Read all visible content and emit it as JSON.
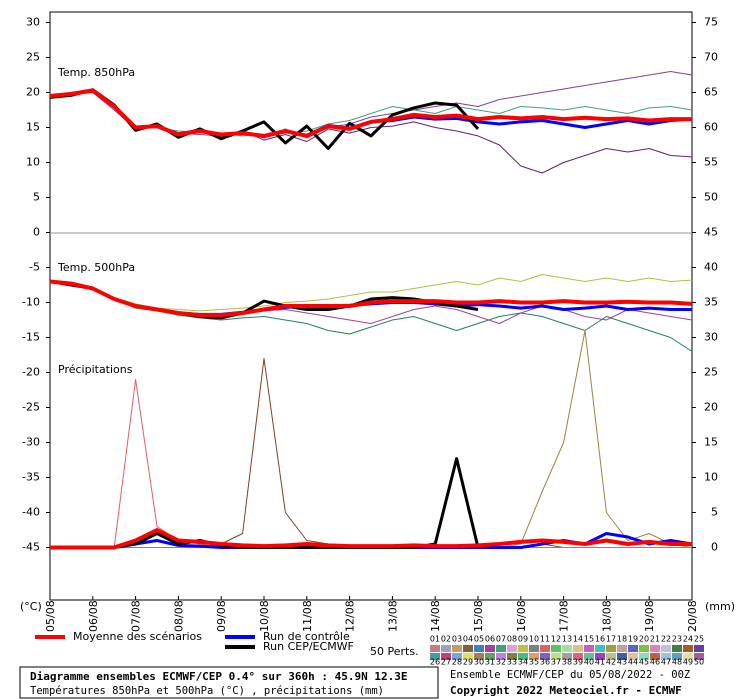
{
  "chart_data": {
    "type": "line",
    "title": "Diagramme ensembles ECMWF/CEP 0.4° sur 360h : 45.9N 12.3E",
    "subtitle": "Températures 850hPa et 500hPa (°C) , précipitations (mm)",
    "run_info": "Ensemble ECMWF/CEP du 05/08/2022 - 00Z",
    "copyright": "Copyright 2022 Meteociel.fr - ECMWF",
    "ylabel": "(°C)",
    "y2label": "(mm)",
    "annotations": [
      "Temp. 850hPa",
      "Temp. 500hPa",
      "Précipitations"
    ],
    "ylim": [
      -52.5,
      31.5
    ],
    "yticks": [
      30,
      25,
      20,
      15,
      10,
      5,
      0,
      -5,
      -10,
      -15,
      -20,
      -25,
      -30,
      -35,
      -40,
      -45
    ],
    "y2lim": [
      -7.5,
      76.5
    ],
    "y2ticks": [
      75,
      70,
      65,
      60,
      55,
      50,
      45,
      40,
      35,
      30,
      25,
      20,
      15,
      10,
      5,
      0
    ],
    "xlim": [
      0,
      15
    ],
    "xticks": [
      {
        "value": 0,
        "label": "05/08"
      },
      {
        "value": 1,
        "label": "06/08"
      },
      {
        "value": 2,
        "label": "07/08"
      },
      {
        "value": 3,
        "label": "08/08"
      },
      {
        "value": 4,
        "label": "09/08"
      },
      {
        "value": 5,
        "label": "10/08"
      },
      {
        "value": 6,
        "label": "11/08"
      },
      {
        "value": 7,
        "label": "12/08"
      },
      {
        "value": 8,
        "label": "13/08"
      },
      {
        "value": 9,
        "label": "14/08"
      },
      {
        "value": 10,
        "label": "15/08"
      },
      {
        "value": 11,
        "label": "16/08"
      },
      {
        "value": 12,
        "label": "17/08"
      },
      {
        "value": 13,
        "label": "18/08"
      },
      {
        "value": 14,
        "label": "19/08"
      },
      {
        "value": 15,
        "label": "20/08"
      }
    ],
    "x": [
      0,
      0.5,
      1,
      1.5,
      2,
      2.5,
      3,
      3.5,
      4,
      4.5,
      5,
      5.5,
      6,
      6.5,
      7,
      7.5,
      8,
      8.5,
      9,
      9.5,
      10,
      10.5,
      11,
      11.5,
      12,
      12.5,
      13,
      13.5,
      14,
      14.5,
      15
    ],
    "series": [
      {
        "color": "#8040a0",
        "width": 1,
        "values": [
          19.5,
          19.8,
          20,
          17.5,
          14.8,
          15,
          14.2,
          14,
          13.8,
          14.5,
          13.5,
          14.8,
          13.5,
          15,
          15.5,
          16.5,
          17,
          17.5,
          18,
          18.5,
          18,
          19,
          19.5,
          20,
          20.5,
          21,
          21.5,
          22,
          22.5,
          23,
          22.5
        ]
      },
      {
        "color": "#602080",
        "width": 1,
        "values": [
          19.5,
          19.6,
          20.2,
          18.3,
          15.2,
          15.3,
          14.2,
          14.8,
          13.6,
          14.6,
          13.2,
          14,
          13,
          14.8,
          14.2,
          15,
          15.2,
          15.8,
          15,
          14.5,
          13.8,
          12.5,
          9.5,
          8.5,
          10,
          11,
          12,
          11.5,
          12,
          11,
          10.8
        ]
      },
      {
        "color": "#40a080",
        "width": 1,
        "values": [
          19.4,
          19.7,
          20.1,
          17.8,
          15.1,
          15,
          14.5,
          14.3,
          14.2,
          13.8,
          14,
          14.2,
          14.5,
          15.5,
          16,
          17,
          18,
          17.5,
          17,
          18,
          17.5,
          17,
          18,
          17.8,
          17.5,
          18,
          17.5,
          17,
          17.8,
          18,
          17.5
        ]
      },
      {
        "color": "#0000ff",
        "width": 3,
        "values": [
          19.5,
          19.8,
          20.2,
          18,
          15,
          15.2,
          14.1,
          14.6,
          13.9,
          14.3,
          13.7,
          14.4,
          13.9,
          15.3,
          14.9,
          15.8,
          16,
          16.5,
          16.2,
          16.3,
          15.8,
          15.5,
          15.8,
          16,
          15.5,
          15,
          15.5,
          16,
          15.5,
          16,
          16.2
        ]
      },
      {
        "color": "#000000",
        "width": 3,
        "values": [
          19.3,
          19.6,
          20.4,
          18.2,
          14.6,
          15.5,
          13.6,
          14.8,
          13.4,
          14.5,
          15.8,
          12.8,
          15.2,
          12,
          15.6,
          13.8,
          16.8,
          17.8,
          18.5,
          18.2,
          14.8,
          null,
          null,
          null,
          null,
          null,
          null,
          null,
          null,
          null,
          null
        ]
      },
      {
        "color": "#ff0000",
        "width": 4,
        "values": [
          19.5,
          19.8,
          20.3,
          18,
          15,
          15.2,
          14,
          14.5,
          14,
          14.2,
          13.8,
          14.5,
          13.8,
          15.2,
          14.8,
          15.8,
          16.2,
          16.8,
          16.5,
          16.7,
          16.2,
          16.5,
          16.3,
          16.5,
          16.2,
          16.4,
          16.2,
          16.3,
          16,
          16.2,
          16.2
        ]
      },
      {
        "color": "#b0c040",
        "width": 1,
        "values": [
          -7,
          -7.4,
          -8.1,
          -9.3,
          -10.2,
          -10.8,
          -11,
          -11.2,
          -11,
          -10.8,
          -10.5,
          -10,
          -9.8,
          -9.5,
          -9,
          -8.5,
          -8.5,
          -8,
          -7.5,
          -7,
          -7.5,
          -6.5,
          -7,
          -6,
          -6.5,
          -7,
          -6.5,
          -7,
          -6.5,
          -7,
          -6.8
        ]
      },
      {
        "color": "#208060",
        "width": 1,
        "values": [
          -7,
          -7.2,
          -8,
          -9.6,
          -10.8,
          -11.2,
          -11.8,
          -12.2,
          -12.5,
          -12.2,
          -12,
          -12.5,
          -13,
          -14,
          -14.5,
          -13.5,
          -12.5,
          -12,
          -13,
          -14,
          -13,
          -12,
          -11.5,
          -12,
          -13,
          -14,
          -12,
          -13,
          -14,
          -15,
          -17
        ]
      },
      {
        "color": "#a040a0",
        "width": 1,
        "values": [
          -7,
          -7.3,
          -8,
          -9.4,
          -10.4,
          -11,
          -11.6,
          -11.9,
          -12,
          -11.6,
          -11.2,
          -11,
          -11.5,
          -12,
          -12.5,
          -13,
          -12,
          -11,
          -10.5,
          -11,
          -12,
          -13,
          -11.5,
          -10.5,
          -11,
          -12,
          -12.5,
          -11,
          -11.5,
          -12,
          -12.5
        ]
      },
      {
        "color": "#0000ff",
        "width": 3,
        "values": [
          -7,
          -7.3,
          -8,
          -9.5,
          -10.5,
          -11,
          -11.5,
          -11.7,
          -11.7,
          -11.4,
          -11,
          -10.7,
          -10.5,
          -10.5,
          -10.4,
          -10.2,
          -10,
          -10,
          -10.2,
          -10.5,
          -10.3,
          -10.5,
          -10.8,
          -10.5,
          -11,
          -10.8,
          -10.5,
          -11,
          -10.8,
          -11,
          -11
        ]
      },
      {
        "color": "#000000",
        "width": 3,
        "values": [
          -7,
          -7.5,
          -8,
          -9.5,
          -10.5,
          -11,
          -11.5,
          -12,
          -12.2,
          -11.5,
          -9.8,
          -10.5,
          -11,
          -11,
          -10.5,
          -9.5,
          -9.3,
          -9.5,
          -10,
          -10.5,
          -11,
          null,
          null,
          null,
          null,
          null,
          null,
          null,
          null,
          null,
          null
        ]
      },
      {
        "color": "#ff0000",
        "width": 4,
        "values": [
          -7,
          -7.3,
          -8,
          -9.5,
          -10.5,
          -11,
          -11.5,
          -11.8,
          -11.8,
          -11.5,
          -11,
          -10.5,
          -10.5,
          -10.5,
          -10.5,
          -10,
          -9.8,
          -9.8,
          -9.8,
          -10,
          -10,
          -9.8,
          -10,
          -10,
          -9.8,
          -10,
          -10,
          -9.9,
          -10,
          -10,
          -10.2
        ]
      },
      {
        "color": "#804020",
        "width": 1,
        "axis": "y2",
        "values": [
          0,
          0,
          0,
          0,
          0,
          0,
          0,
          0,
          0.5,
          2,
          27,
          5,
          1,
          0.5,
          0,
          0,
          0,
          0,
          0,
          0,
          0,
          0,
          0,
          0.5,
          0,
          0,
          0,
          0,
          0,
          0,
          0
        ]
      },
      {
        "color": "#e06060",
        "width": 1,
        "axis": "y2",
        "values": [
          0,
          0,
          0,
          0,
          24,
          3,
          1,
          0.5,
          0,
          0,
          0,
          0,
          0,
          0,
          0,
          0,
          0,
          0,
          0,
          0,
          0,
          0,
          0,
          0,
          0,
          0,
          0,
          0,
          0,
          0,
          0
        ]
      },
      {
        "color": "#a08040",
        "width": 1,
        "axis": "y2",
        "values": [
          0,
          0,
          0,
          0,
          0,
          0,
          0,
          0,
          0,
          0,
          0,
          0,
          0,
          0,
          0,
          0,
          0,
          0,
          0,
          0,
          0,
          0,
          0.5,
          8,
          15,
          31,
          5,
          1,
          2,
          0.5,
          0
        ]
      },
      {
        "color": "#0000ff",
        "width": 3,
        "axis": "y2",
        "values": [
          0,
          0,
          0,
          0,
          0.5,
          1,
          0.3,
          0.2,
          0,
          0,
          0,
          0,
          0,
          0,
          0,
          0,
          0,
          0,
          0,
          0,
          0,
          0,
          0,
          0.5,
          1,
          0.5,
          2,
          1.5,
          0.5,
          1,
          0.5
        ]
      },
      {
        "color": "#000000",
        "width": 3,
        "axis": "y2",
        "values": [
          0,
          0,
          0,
          0,
          0.5,
          2,
          0.5,
          1,
          0.3,
          0,
          0,
          0,
          0,
          0,
          0,
          0,
          0,
          0,
          0.5,
          12.7,
          0,
          null,
          null,
          null,
          null,
          null,
          null,
          null,
          null,
          null,
          null
        ]
      },
      {
        "color": "#ff0000",
        "width": 4,
        "axis": "y2",
        "values": [
          0,
          0,
          0,
          0,
          1,
          2.5,
          1,
          0.8,
          0.5,
          0.3,
          0.2,
          0.3,
          0.5,
          0.3,
          0.2,
          0.2,
          0.2,
          0.3,
          0.2,
          0.2,
          0.3,
          0.5,
          0.8,
          1,
          0.8,
          0.5,
          1,
          0.5,
          0.8,
          0.5,
          0.5
        ]
      }
    ],
    "legend": [
      {
        "name": "Moyenne des scénarios",
        "color": "#ff0000"
      },
      {
        "name": "Run de contrôle",
        "color": "#0000ff"
      },
      {
        "name": "Run CEP/ECMWF",
        "color": "#000000"
      }
    ],
    "perts": {
      "label": "50 Perts.",
      "numbers": [
        "01",
        "02",
        "03",
        "04",
        "05",
        "06",
        "07",
        "08",
        "09",
        "10",
        "11",
        "12",
        "13",
        "14",
        "15",
        "16",
        "17",
        "18",
        "19",
        "20",
        "21",
        "22",
        "23",
        "24",
        "25",
        "26",
        "27",
        "28",
        "29",
        "30",
        "31",
        "32",
        "33",
        "34",
        "35",
        "36",
        "37",
        "38",
        "39",
        "40",
        "41",
        "42",
        "43",
        "44",
        "45",
        "46",
        "47",
        "48",
        "49",
        "50"
      ],
      "colors": [
        "#c08080",
        "#a0a0c0",
        "#c0a060",
        "#806040",
        "#4080c0",
        "#a040a0",
        "#40a080",
        "#e0a0e0",
        "#c0c040",
        "#808080",
        "#e06060",
        "#60c060",
        "#a0e0a0",
        "#e0c080",
        "#c060c0",
        "#40c0c0",
        "#a0a040",
        "#c0a0a0",
        "#6060c0",
        "#80c040",
        "#e080c0",
        "#c0c0e0",
        "#408040",
        "#a06020",
        "#6040a0",
        "#40a0a0",
        "#c04080",
        "#80a0e0",
        "#e0e060",
        "#a08060",
        "#60a060",
        "#c080e0",
        "#808040",
        "#40c080",
        "#e0a060",
        "#8060c0",
        "#c0e080",
        "#a0a0a0",
        "#e06080",
        "#60c0a0",
        "#a040c0",
        "#c0c080",
        "#4060a0",
        "#e0c0a0",
        "#80e0c0",
        "#c06040",
        "#a0c0e0",
        "#60a0c0",
        "#e0e0a0",
        "#a060a0"
      ]
    }
  }
}
